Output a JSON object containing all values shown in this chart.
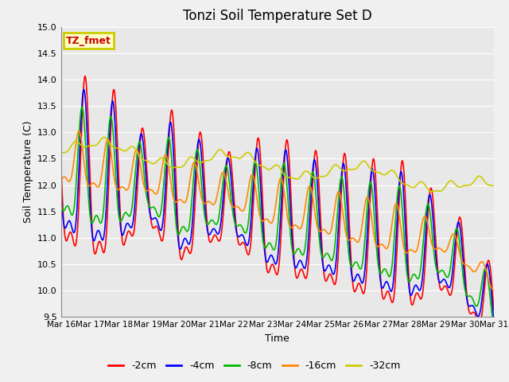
{
  "title": "Tonzi Soil Temperature Set D",
  "xlabel": "Time",
  "ylabel": "Soil Temperature (C)",
  "ylim": [
    9.5,
    15.0
  ],
  "ytick_min": 9.5,
  "ytick_max": 15.0,
  "ytick_step": 0.5,
  "background_color": "#f0f0f0",
  "plot_bg_color": "#e8e8e8",
  "legend_label": "TZ_fmet",
  "legend_label_fc": "#ffffcc",
  "legend_label_ec": "#cccc00",
  "series_labels": [
    "-2cm",
    "-4cm",
    "-8cm",
    "-16cm",
    "-32cm"
  ],
  "series_colors": [
    "#ff0000",
    "#0000ff",
    "#00bb00",
    "#ff8800",
    "#cccc00"
  ],
  "xtick_labels": [
    "Mar 16",
    "Mar 17",
    "Mar 18",
    "Mar 19",
    "Mar 20",
    "Mar 21",
    "Mar 22",
    "Mar 23",
    "Mar 24",
    "Mar 25",
    "Mar 26",
    "Mar 27",
    "Mar 28",
    "Mar 29",
    "Mar 30",
    "Mar 31"
  ],
  "figsize": [
    6.4,
    4.8
  ],
  "dpi": 100
}
